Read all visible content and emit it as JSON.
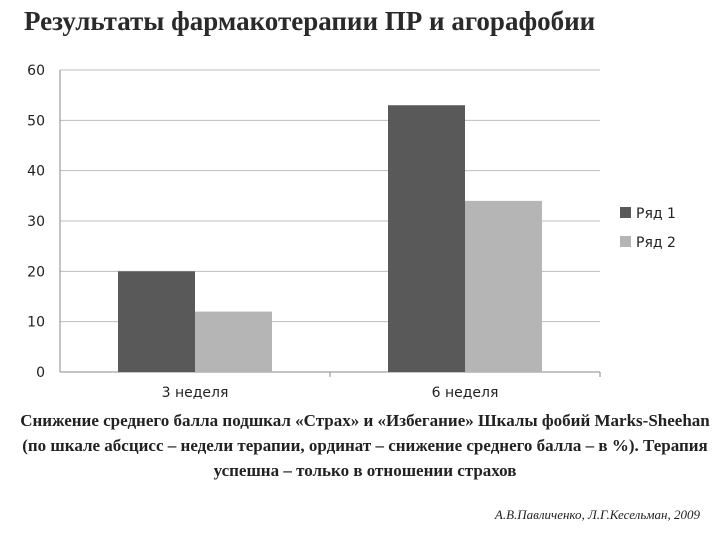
{
  "title": "Результаты фармакотерапии ПР и агорафобии",
  "chart_data": {
    "type": "bar",
    "categories": [
      "3 неделя",
      "6 неделя"
    ],
    "series": [
      {
        "name": "Ряд 1",
        "values": [
          20,
          53
        ],
        "color": "#595959"
      },
      {
        "name": "Ряд 2",
        "values": [
          12,
          34
        ],
        "color": "#b5b5b5"
      }
    ],
    "ylim": [
      0,
      60
    ],
    "yticks": [
      0,
      10,
      20,
      30,
      40,
      50,
      60
    ],
    "grid": true,
    "legend": "right"
  },
  "caption": "Снижение среднего балла подшкал «Страх» и «Избегание» Шкалы фобий Marks-Sheehan (по шкале абсцисс – недели терапии, ординат – снижение среднего балла – в %). Терапия успешна – только в отношении страхов",
  "author": "А.В.Павличенко, Л.Г.Кесельман, 2009"
}
